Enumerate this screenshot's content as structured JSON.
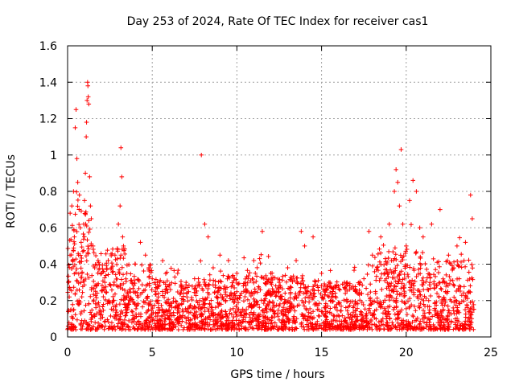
{
  "chart_data": {
    "type": "scatter",
    "title": "Day 253 of 2024, Rate Of TEC Index for receiver cas1",
    "xlabel": "GPS time / hours",
    "ylabel": "ROTI / TECUs",
    "xlim": [
      0,
      25
    ],
    "ylim": [
      0,
      1.6
    ],
    "x_ticks": [
      0,
      5,
      10,
      15,
      20,
      25
    ],
    "x_tick_labels": [
      "0",
      "5",
      "10",
      "15",
      "20",
      "25"
    ],
    "y_ticks": [
      0,
      0.2,
      0.4,
      0.6,
      0.8,
      1.0,
      1.2,
      1.4,
      1.6
    ],
    "y_tick_labels": [
      "0",
      "0.2",
      "0.4",
      "0.6",
      "0.8",
      "1",
      "1.2",
      "1.4",
      "1.6"
    ],
    "grid": true,
    "marker": "+",
    "color": "#ff0000",
    "series": [
      {
        "name": "ROTI",
        "note": "representative sample of the dense point cloud",
        "points": [
          [
            0.05,
            0.3
          ],
          [
            0.1,
            0.22
          ],
          [
            0.15,
            0.68
          ],
          [
            0.2,
            0.15
          ],
          [
            0.25,
            0.72
          ],
          [
            0.3,
            0.42
          ],
          [
            0.35,
            0.8
          ],
          [
            0.4,
            0.55
          ],
          [
            0.45,
            1.15
          ],
          [
            0.5,
            1.25
          ],
          [
            0.55,
            0.98
          ],
          [
            0.6,
            0.85
          ],
          [
            0.65,
            0.45
          ],
          [
            0.7,
            0.78
          ],
          [
            0.75,
            0.6
          ],
          [
            0.8,
            0.52
          ],
          [
            0.85,
            0.35
          ],
          [
            0.9,
            0.47
          ],
          [
            0.95,
            0.62
          ],
          [
            1.0,
            0.75
          ],
          [
            1.05,
            0.9
          ],
          [
            1.1,
            1.1
          ],
          [
            1.12,
            1.18
          ],
          [
            1.15,
            1.3
          ],
          [
            1.18,
            1.4
          ],
          [
            1.2,
            1.38
          ],
          [
            1.22,
            1.32
          ],
          [
            1.25,
            1.28
          ],
          [
            1.3,
            0.88
          ],
          [
            1.35,
            0.72
          ],
          [
            1.4,
            0.65
          ],
          [
            1.5,
            0.5
          ],
          [
            1.6,
            0.38
          ],
          [
            1.7,
            0.28
          ],
          [
            1.8,
            0.42
          ],
          [
            2.0,
            0.35
          ],
          [
            2.2,
            0.3
          ],
          [
            2.4,
            0.42
          ],
          [
            2.6,
            0.38
          ],
          [
            2.8,
            0.45
          ],
          [
            3.0,
            0.62
          ],
          [
            3.1,
            0.72
          ],
          [
            3.15,
            1.04
          ],
          [
            3.2,
            0.88
          ],
          [
            3.25,
            0.55
          ],
          [
            3.3,
            0.5
          ],
          [
            3.5,
            0.35
          ],
          [
            3.8,
            0.3
          ],
          [
            4.0,
            0.4
          ],
          [
            4.3,
            0.52
          ],
          [
            4.6,
            0.45
          ],
          [
            4.8,
            0.38
          ],
          [
            5.0,
            0.32
          ],
          [
            5.3,
            0.3
          ],
          [
            5.6,
            0.25
          ],
          [
            6.0,
            0.28
          ],
          [
            6.5,
            0.35
          ],
          [
            7.0,
            0.3
          ],
          [
            7.5,
            0.32
          ],
          [
            7.9,
            1.0
          ],
          [
            8.1,
            0.62
          ],
          [
            8.3,
            0.55
          ],
          [
            8.6,
            0.38
          ],
          [
            9.0,
            0.45
          ],
          [
            9.5,
            0.42
          ],
          [
            10.0,
            0.35
          ],
          [
            10.5,
            0.3
          ],
          [
            11.0,
            0.42
          ],
          [
            11.5,
            0.58
          ],
          [
            12.0,
            0.35
          ],
          [
            12.5,
            0.3
          ],
          [
            13.0,
            0.38
          ],
          [
            13.5,
            0.42
          ],
          [
            13.8,
            0.58
          ],
          [
            14.0,
            0.5
          ],
          [
            14.5,
            0.55
          ],
          [
            15.0,
            0.35
          ],
          [
            15.5,
            0.3
          ],
          [
            16.0,
            0.28
          ],
          [
            16.5,
            0.3
          ],
          [
            17.0,
            0.25
          ],
          [
            17.5,
            0.32
          ],
          [
            17.8,
            0.58
          ],
          [
            18.0,
            0.45
          ],
          [
            18.5,
            0.55
          ],
          [
            19.0,
            0.62
          ],
          [
            19.3,
            0.8
          ],
          [
            19.4,
            0.92
          ],
          [
            19.5,
            0.85
          ],
          [
            19.6,
            0.72
          ],
          [
            19.7,
            1.03
          ],
          [
            19.8,
            0.62
          ],
          [
            20.0,
            0.5
          ],
          [
            20.2,
            0.75
          ],
          [
            20.4,
            0.86
          ],
          [
            20.6,
            0.8
          ],
          [
            20.8,
            0.6
          ],
          [
            21.0,
            0.55
          ],
          [
            21.5,
            0.62
          ],
          [
            22.0,
            0.7
          ],
          [
            22.5,
            0.45
          ],
          [
            23.0,
            0.5
          ],
          [
            23.5,
            0.52
          ],
          [
            23.8,
            0.78
          ],
          [
            23.9,
            0.65
          ]
        ]
      }
    ]
  }
}
